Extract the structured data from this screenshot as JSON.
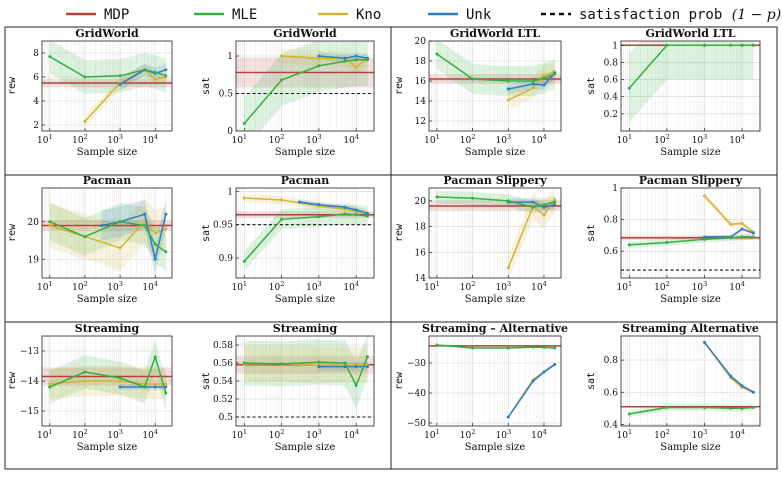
{
  "legend": [
    {
      "label": "MDP",
      "color": "#b5433c",
      "style": "solid"
    },
    {
      "label": "MLE",
      "color": "#33b040",
      "style": "solid"
    },
    {
      "label": "Kno",
      "color": "#d2b431",
      "style": "solid"
    },
    {
      "label": "Unk",
      "color": "#2f7fbf",
      "style": "solid"
    },
    {
      "label": "satisfaction prob",
      "math": "(1 − p)",
      "color": "#111111",
      "style": "dashed"
    }
  ],
  "chart_data": [
    {
      "type": "line",
      "title": "GridWorld",
      "xlabel": "Sample size",
      "ylabel": "rew",
      "xscale": "log",
      "xlim": [
        6,
        30000
      ],
      "ylim": [
        1.5,
        9
      ],
      "yticks": [
        2,
        4,
        6,
        8
      ],
      "hline": null,
      "series": [
        {
          "name": "MDP",
          "x": [
            6,
            30000
          ],
          "y": [
            5.5,
            5.5
          ],
          "band": 0.35
        },
        {
          "name": "MLE",
          "x": [
            10,
            100,
            1000,
            5000,
            10000,
            20000
          ],
          "y": [
            7.7,
            6.0,
            6.1,
            6.6,
            6.4,
            6.1
          ],
          "band": 1.4
        },
        {
          "name": "Kno",
          "x": [
            100,
            1000,
            5000,
            10000,
            20000
          ],
          "y": [
            2.3,
            5.5,
            6.6,
            5.8,
            6.0
          ],
          "band": 0.5
        },
        {
          "name": "Unk",
          "x": [
            1000,
            5000,
            10000,
            20000
          ],
          "y": [
            5.4,
            6.6,
            6.3,
            6.6
          ],
          "band": 0.5
        }
      ]
    },
    {
      "type": "line",
      "title": "GridWorld",
      "xlabel": "Sample size",
      "ylabel": "sat",
      "xscale": "log",
      "xlim": [
        6,
        30000
      ],
      "ylim": [
        0,
        1.2
      ],
      "yticks": [
        0,
        0.5,
        1
      ],
      "hline": 0.5,
      "series": [
        {
          "name": "MDP",
          "x": [
            6,
            30000
          ],
          "y": [
            0.78,
            0.78
          ],
          "band": 0.2
        },
        {
          "name": "MLE",
          "x": [
            10,
            100,
            1000,
            5000,
            10000,
            20000
          ],
          "y": [
            0.1,
            0.68,
            0.87,
            0.93,
            0.95,
            0.95
          ],
          "band": 0.35
        },
        {
          "name": "Kno",
          "x": [
            100,
            1000,
            5000,
            10000,
            20000
          ],
          "y": [
            1.0,
            0.97,
            0.97,
            0.85,
            0.97
          ],
          "band": 0.1
        },
        {
          "name": "Unk",
          "x": [
            1000,
            5000,
            10000,
            20000
          ],
          "y": [
            1.0,
            0.97,
            1.0,
            0.97
          ],
          "band": 0.05
        }
      ]
    },
    {
      "type": "line",
      "title": "GridWorld LTL",
      "xlabel": "Sample size",
      "ylabel": "rew",
      "xscale": "log",
      "xlim": [
        6,
        30000
      ],
      "ylim": [
        11,
        20
      ],
      "yticks": [
        12,
        14,
        16,
        18,
        20
      ],
      "hline": null,
      "series": [
        {
          "name": "MDP",
          "x": [
            6,
            30000
          ],
          "y": [
            16.2,
            16.2
          ],
          "band": 0.5
        },
        {
          "name": "MLE",
          "x": [
            10,
            100,
            1000,
            5000,
            10000,
            20000
          ],
          "y": [
            18.7,
            16.2,
            16.0,
            16.0,
            16.3,
            16.7
          ],
          "band": 1.5
        },
        {
          "name": "Kno",
          "x": [
            1000,
            5000,
            10000,
            20000
          ],
          "y": [
            14.1,
            15.3,
            16.6,
            16.9
          ],
          "band": 1.0
        },
        {
          "name": "Unk",
          "x": [
            1000,
            5000,
            10000,
            20000
          ],
          "y": [
            15.2,
            15.7,
            15.6,
            16.8
          ],
          "band": 0.5
        }
      ]
    },
    {
      "type": "line",
      "title": "GridWorld LTL",
      "xlabel": "Sample size",
      "ylabel": "sat",
      "xscale": "log",
      "xlim": [
        6,
        30000
      ],
      "ylim": [
        0,
        1.05
      ],
      "yticks": [
        0.2,
        0.4,
        0.6,
        0.8,
        1
      ],
      "hline": 1.0,
      "series": [
        {
          "name": "MDP",
          "x": [
            6,
            30000
          ],
          "y": [
            1.0,
            1.0
          ],
          "band": 0.0
        },
        {
          "name": "MLE",
          "x": [
            10,
            100,
            1000,
            5000,
            10000,
            20000
          ],
          "y": [
            0.5,
            1.0,
            1.0,
            1.0,
            1.0,
            1.0
          ],
          "band": 0.4
        },
        {
          "name": "Kno",
          "x": [
            1000,
            5000,
            10000,
            20000
          ],
          "y": [
            1.0,
            1.0,
            1.0,
            1.0
          ],
          "band": 0.0
        },
        {
          "name": "Unk",
          "x": [
            1000,
            5000,
            10000,
            20000
          ],
          "y": [
            1.0,
            1.0,
            1.0,
            1.0
          ],
          "band": 0.0
        }
      ]
    },
    {
      "type": "line",
      "title": "Pacman",
      "xlabel": "Sample size",
      "ylabel": "rew",
      "xscale": "log",
      "xlim": [
        6,
        30000
      ],
      "ylim": [
        18.5,
        20.9
      ],
      "yticks": [
        19,
        20
      ],
      "hline": null,
      "series": [
        {
          "name": "MDP",
          "x": [
            6,
            30000
          ],
          "y": [
            19.9,
            19.9
          ],
          "band": 0.15
        },
        {
          "name": "MLE",
          "x": [
            10,
            100,
            1000,
            5000,
            10000,
            20000
          ],
          "y": [
            20.0,
            19.6,
            20.0,
            19.9,
            19.4,
            19.2
          ],
          "band": 0.5
        },
        {
          "name": "Kno",
          "x": [
            10,
            100,
            1000,
            5000,
            10000,
            20000
          ],
          "y": [
            19.9,
            19.6,
            19.3,
            20.0,
            19.7,
            19.8
          ],
          "band": 0.6
        },
        {
          "name": "Unk",
          "x": [
            300,
            1000,
            5000,
            10000,
            20000
          ],
          "y": [
            19.9,
            20.0,
            20.2,
            19.0,
            20.2
          ],
          "band": 0.4
        }
      ]
    },
    {
      "type": "line",
      "title": "Pacman",
      "xlabel": "Sample size",
      "ylabel": "sat",
      "xscale": "log",
      "xlim": [
        6,
        30000
      ],
      "ylim": [
        0.87,
        1.005
      ],
      "yticks": [
        0.9,
        0.95,
        1
      ],
      "hline": 0.95,
      "series": [
        {
          "name": "MDP",
          "x": [
            6,
            30000
          ],
          "y": [
            0.965,
            0.965
          ],
          "band": 0.005
        },
        {
          "name": "MLE",
          "x": [
            10,
            100,
            1000,
            5000,
            10000,
            20000
          ],
          "y": [
            0.895,
            0.958,
            0.962,
            0.966,
            0.965,
            0.963
          ],
          "band": 0.015
        },
        {
          "name": "Kno",
          "x": [
            10,
            100,
            1000,
            5000,
            10000,
            20000
          ],
          "y": [
            0.99,
            0.987,
            0.978,
            0.973,
            0.97,
            0.967
          ],
          "band": 0.006
        },
        {
          "name": "Unk",
          "x": [
            300,
            1000,
            5000,
            10000,
            20000
          ],
          "y": [
            0.984,
            0.98,
            0.976,
            0.972,
            0.967
          ],
          "band": 0.004
        }
      ]
    },
    {
      "type": "line",
      "title": "Pacman Slippery",
      "xlabel": "Sample size",
      "ylabel": "rew",
      "xscale": "log",
      "xlim": [
        6,
        30000
      ],
      "ylim": [
        14,
        21
      ],
      "yticks": [
        14,
        16,
        18,
        20
      ],
      "hline": null,
      "series": [
        {
          "name": "MDP",
          "x": [
            6,
            30000
          ],
          "y": [
            19.6,
            19.6
          ],
          "band": 0.4
        },
        {
          "name": "MLE",
          "x": [
            10,
            100,
            1000,
            5000,
            10000,
            20000
          ],
          "y": [
            20.3,
            20.2,
            20.0,
            19.5,
            19.7,
            19.9
          ],
          "band": 0.5
        },
        {
          "name": "Kno",
          "x": [
            1000,
            5000,
            10000,
            20000
          ],
          "y": [
            14.8,
            19.6,
            18.9,
            20.1
          ],
          "band": 1.0
        },
        {
          "name": "Unk",
          "x": [
            1000,
            5000,
            10000,
            20000
          ],
          "y": [
            19.9,
            19.9,
            19.5,
            19.7
          ],
          "band": 0.3
        }
      ]
    },
    {
      "type": "line",
      "title": "Pacman Slippery",
      "xlabel": "Sample size",
      "ylabel": "sat",
      "xscale": "log",
      "xlim": [
        6,
        30000
      ],
      "ylim": [
        0.43,
        1.0
      ],
      "yticks": [
        0.6,
        0.8,
        1
      ],
      "hline": 0.48,
      "series": [
        {
          "name": "MDP",
          "x": [
            6,
            30000
          ],
          "y": [
            0.685,
            0.685
          ],
          "band": 0.015
        },
        {
          "name": "MLE",
          "x": [
            10,
            100,
            1000,
            5000,
            10000,
            20000
          ],
          "y": [
            0.64,
            0.655,
            0.675,
            0.685,
            0.69,
            0.69
          ],
          "band": 0.02
        },
        {
          "name": "Kno",
          "x": [
            1000,
            5000,
            10000,
            20000
          ],
          "y": [
            0.95,
            0.77,
            0.775,
            0.72
          ],
          "band": 0.02
        },
        {
          "name": "Unk",
          "x": [
            1000,
            5000,
            10000,
            20000
          ],
          "y": [
            0.69,
            0.69,
            0.74,
            0.715
          ],
          "band": 0.01
        }
      ]
    },
    {
      "type": "line",
      "title": "Streaming",
      "xlabel": "Sample size",
      "ylabel": "rew",
      "xscale": "log",
      "xlim": [
        6,
        30000
      ],
      "ylim": [
        -15.5,
        -12.5
      ],
      "yticks": [
        -15,
        -14,
        -13
      ],
      "hline": null,
      "series": [
        {
          "name": "MDP",
          "x": [
            6,
            30000
          ],
          "y": [
            -13.85,
            -13.85
          ],
          "band": 0.3
        },
        {
          "name": "MLE",
          "x": [
            10,
            100,
            1000,
            5000,
            10000,
            20000
          ],
          "y": [
            -14.2,
            -13.7,
            -13.9,
            -14.2,
            -13.2,
            -14.4
          ],
          "band": 0.55
        },
        {
          "name": "Kno",
          "x": [
            10,
            100,
            1000,
            5000,
            10000,
            20000
          ],
          "y": [
            -14.1,
            -14.0,
            -14.0,
            -14.1,
            -14.1,
            -14.1
          ],
          "band": 0.5
        },
        {
          "name": "Unk",
          "x": [
            1000,
            5000,
            10000,
            20000
          ],
          "y": [
            -14.2,
            -14.2,
            -14.2,
            -14.2
          ],
          "band": 0.1
        }
      ]
    },
    {
      "type": "line",
      "title": "Streaming",
      "xlabel": "Sample size",
      "ylabel": "sat",
      "xscale": "log",
      "xlim": [
        6,
        30000
      ],
      "ylim": [
        0.49,
        0.59
      ],
      "yticks": [
        0.5,
        0.52,
        0.54,
        0.56,
        0.58
      ],
      "hline": 0.5,
      "series": [
        {
          "name": "MDP",
          "x": [
            6,
            30000
          ],
          "y": [
            0.558,
            0.558
          ],
          "band": 0.01
        },
        {
          "name": "MLE",
          "x": [
            10,
            100,
            1000,
            5000,
            10000,
            20000
          ],
          "y": [
            0.56,
            0.559,
            0.561,
            0.56,
            0.535,
            0.567
          ],
          "band": 0.025
        },
        {
          "name": "Kno",
          "x": [
            10,
            100,
            1000,
            5000,
            10000,
            20000
          ],
          "y": [
            0.559,
            0.559,
            0.558,
            0.558,
            0.558,
            0.558
          ],
          "band": 0.02
        },
        {
          "name": "Unk",
          "x": [
            1000,
            5000,
            10000,
            20000
          ],
          "y": [
            0.556,
            0.556,
            0.556,
            0.556
          ],
          "band": 0.005
        }
      ]
    },
    {
      "type": "line",
      "title": "Streaming – Alternative",
      "xlabel": "Sample size",
      "ylabel": "rew",
      "xscale": "log",
      "xlim": [
        6,
        30000
      ],
      "ylim": [
        -51,
        -21
      ],
      "yticks": [
        -50,
        -40,
        -30
      ],
      "hline": null,
      "series": [
        {
          "name": "MDP",
          "x": [
            6,
            30000
          ],
          "y": [
            -24.3,
            -24.3
          ],
          "band": 0.3
        },
        {
          "name": "MLE",
          "x": [
            10,
            100,
            1000,
            5000,
            10000,
            20000
          ],
          "y": [
            -24.0,
            -25.0,
            -25.0,
            -24.7,
            -24.8,
            -25.0
          ],
          "band": 0.3
        },
        {
          "name": "Kno",
          "x": [
            1000,
            5000,
            10000,
            20000
          ],
          "y": [
            -48.0,
            -35.5,
            -33.0,
            -30.5
          ],
          "band": 0.5
        },
        {
          "name": "Unk",
          "x": [
            1000,
            5000,
            10000,
            20000
          ],
          "y": [
            -48.0,
            -36.0,
            -33.0,
            -30.5
          ],
          "band": 0.5
        }
      ]
    },
    {
      "type": "line",
      "title": "Streaming Alternative",
      "xlabel": "Sample size",
      "ylabel": "sat",
      "xscale": "log",
      "xlim": [
        6,
        30000
      ],
      "ylim": [
        0.39,
        0.95
      ],
      "yticks": [
        0.4,
        0.6,
        0.8
      ],
      "hline": null,
      "series": [
        {
          "name": "MDP",
          "x": [
            6,
            30000
          ],
          "y": [
            0.51,
            0.51
          ],
          "band": 0.005
        },
        {
          "name": "MLE",
          "x": [
            10,
            100,
            1000,
            5000,
            10000,
            20000
          ],
          "y": [
            0.465,
            0.505,
            0.505,
            0.5,
            0.5,
            0.505
          ],
          "band": 0.02
        },
        {
          "name": "Kno",
          "x": [
            1000,
            5000,
            10000,
            20000
          ],
          "y": [
            0.91,
            0.69,
            0.63,
            0.6
          ],
          "band": 0.01
        },
        {
          "name": "Unk",
          "x": [
            1000,
            5000,
            10000,
            20000
          ],
          "y": [
            0.91,
            0.7,
            0.64,
            0.6
          ],
          "band": 0.01
        }
      ]
    }
  ]
}
